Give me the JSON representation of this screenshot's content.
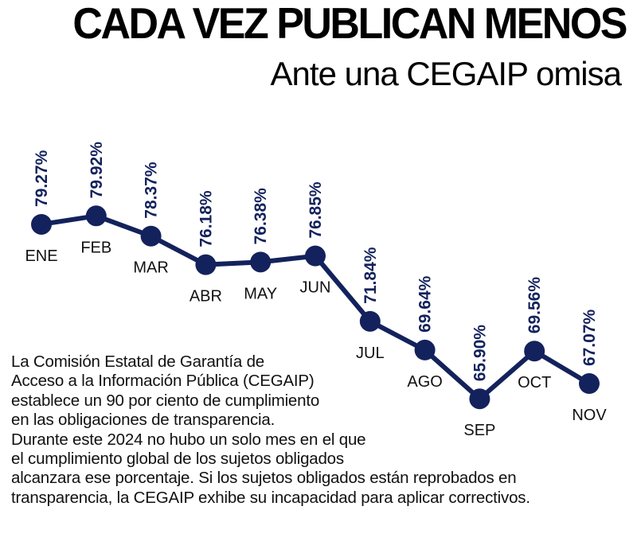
{
  "header": {
    "title": "CADA VEZ PUBLICAN MENOS",
    "subtitle": "Ante una CEGAIP omisa"
  },
  "chart_data": {
    "type": "line",
    "title": "CADA VEZ PUBLICAN MENOS",
    "subtitle": "Ante una CEGAIP omisa",
    "xlabel": "",
    "ylabel": "",
    "categories": [
      "ENE",
      "FEB",
      "MAR",
      "ABR",
      "MAY",
      "JUN",
      "JUL",
      "AGO",
      "SEP",
      "OCT",
      "NOV"
    ],
    "values": [
      79.27,
      79.92,
      78.37,
      76.18,
      76.38,
      76.85,
      71.84,
      69.64,
      65.9,
      69.56,
      67.07
    ],
    "value_labels": [
      "79.27%",
      "79.92%",
      "78.37%",
      "76.18%",
      "76.38%",
      "76.85%",
      "71.84%",
      "69.64%",
      "65.90%",
      "69.56%",
      "67.07%"
    ],
    "grid": false,
    "legend": "none",
    "color": "#13225c"
  },
  "body": {
    "lines": [
      "La Comisión Estatal de Garantía de",
      "Acceso a la Información Pública (CEGAIP)",
      "establece un 90 por ciento de cumplimiento",
      "en las obligaciones de transparencia.",
      "Durante este 2024 no hubo un solo mes en el que",
      "el cumplimiento global de los sujetos obligados",
      "alcanzara ese porcentaje. Si los sujetos obligados están reprobados en",
      "transparencia, la CEGAIP exhibe su incapacidad para aplicar correctivos."
    ]
  }
}
